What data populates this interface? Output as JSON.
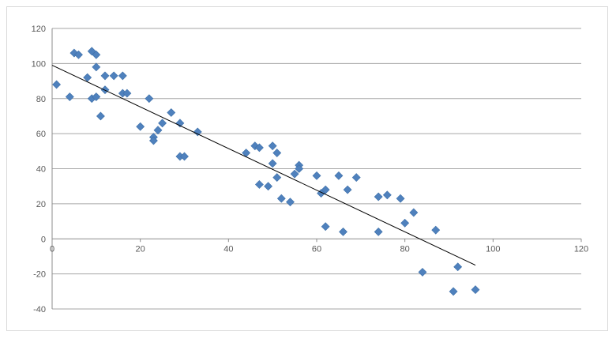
{
  "chart_data": {
    "type": "scatter",
    "title": "",
    "xlabel": "",
    "ylabel": "",
    "xlim": [
      0,
      120
    ],
    "ylim": [
      -40,
      120
    ],
    "x_ticks": [
      0,
      20,
      40,
      60,
      80,
      100,
      120
    ],
    "y_ticks": [
      -40,
      -20,
      0,
      20,
      40,
      60,
      80,
      100,
      120
    ],
    "grid": "horizontal",
    "legend": "none",
    "marker_color": "#4f81bd",
    "trendline_color": "#000000",
    "trendline": {
      "x": [
        0,
        96
      ],
      "y": [
        99,
        -15
      ]
    },
    "series": [
      {
        "points": [
          [
            1,
            88
          ],
          [
            4,
            81
          ],
          [
            5,
            106
          ],
          [
            6,
            105
          ],
          [
            8,
            92
          ],
          [
            9,
            107
          ],
          [
            9,
            80
          ],
          [
            10,
            105
          ],
          [
            10,
            98
          ],
          [
            10,
            81
          ],
          [
            11,
            70
          ],
          [
            12,
            93
          ],
          [
            12,
            85
          ],
          [
            14,
            93
          ],
          [
            16,
            93
          ],
          [
            16,
            83
          ],
          [
            17,
            83
          ],
          [
            20,
            64
          ],
          [
            22,
            80
          ],
          [
            23,
            58
          ],
          [
            23,
            56
          ],
          [
            24,
            62
          ],
          [
            25,
            66
          ],
          [
            27,
            72
          ],
          [
            29,
            66
          ],
          [
            29,
            47
          ],
          [
            30,
            47
          ],
          [
            33,
            61
          ],
          [
            44,
            49
          ],
          [
            46,
            53
          ],
          [
            47,
            52
          ],
          [
            47,
            31
          ],
          [
            49,
            30
          ],
          [
            50,
            53
          ],
          [
            50,
            43
          ],
          [
            51,
            49
          ],
          [
            51,
            35
          ],
          [
            52,
            23
          ],
          [
            54,
            21
          ],
          [
            55,
            37
          ],
          [
            56,
            42
          ],
          [
            56,
            40
          ],
          [
            60,
            36
          ],
          [
            61,
            26
          ],
          [
            62,
            28
          ],
          [
            62,
            7
          ],
          [
            65,
            36
          ],
          [
            66,
            4
          ],
          [
            67,
            28
          ],
          [
            69,
            35
          ],
          [
            74,
            24
          ],
          [
            74,
            4
          ],
          [
            76,
            25
          ],
          [
            79,
            23
          ],
          [
            80,
            9
          ],
          [
            82,
            15
          ],
          [
            84,
            -19
          ],
          [
            87,
            5
          ],
          [
            91,
            -30
          ],
          [
            92,
            -16
          ],
          [
            96,
            -29
          ]
        ]
      }
    ]
  }
}
